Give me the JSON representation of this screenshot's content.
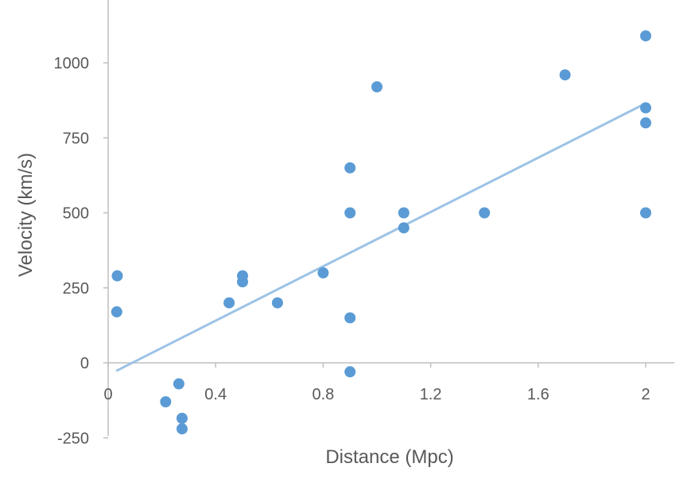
{
  "chart_data": {
    "type": "scatter",
    "xlabel": "Distance (Mpc)",
    "ylabel": "Velocity  (km/s)",
    "xlim": [
      0,
      2.1
    ],
    "ylim": [
      -250,
      1200
    ],
    "x_ticks": [
      0,
      0.4,
      0.8,
      1.2,
      1.6,
      2
    ],
    "x_tick_labels": [
      "0",
      "0.4",
      "0.8",
      "1.2",
      "1.6",
      "2"
    ],
    "y_ticks": [
      -250,
      0,
      250,
      500,
      750,
      1000
    ],
    "y_tick_labels": [
      "-250",
      "0",
      "250",
      "500",
      "750",
      "1000"
    ],
    "grid": false,
    "legend": "none",
    "series": [
      {
        "marker_color": "#5b9bd5",
        "points": [
          {
            "x": 0.032,
            "y": 170
          },
          {
            "x": 0.034,
            "y": 290
          },
          {
            "x": 0.214,
            "y": -130
          },
          {
            "x": 0.263,
            "y": -70
          },
          {
            "x": 0.275,
            "y": -185
          },
          {
            "x": 0.275,
            "y": -220
          },
          {
            "x": 0.45,
            "y": 200
          },
          {
            "x": 0.5,
            "y": 290
          },
          {
            "x": 0.5,
            "y": 270
          },
          {
            "x": 0.63,
            "y": 200
          },
          {
            "x": 0.8,
            "y": 300
          },
          {
            "x": 0.9,
            "y": -30
          },
          {
            "x": 0.9,
            "y": 650
          },
          {
            "x": 0.9,
            "y": 150
          },
          {
            "x": 0.9,
            "y": 500
          },
          {
            "x": 1.0,
            "y": 920
          },
          {
            "x": 1.1,
            "y": 450
          },
          {
            "x": 1.1,
            "y": 500
          },
          {
            "x": 1.4,
            "y": 500
          },
          {
            "x": 1.7,
            "y": 960
          },
          {
            "x": 2.0,
            "y": 500
          },
          {
            "x": 2.0,
            "y": 850
          },
          {
            "x": 2.0,
            "y": 800
          },
          {
            "x": 2.0,
            "y": 1090
          }
        ]
      }
    ],
    "trendline": {
      "type": "linear",
      "color": "#9dc3e6",
      "x": [
        0.03,
        2.0
      ],
      "y": [
        -27,
        865
      ]
    }
  }
}
